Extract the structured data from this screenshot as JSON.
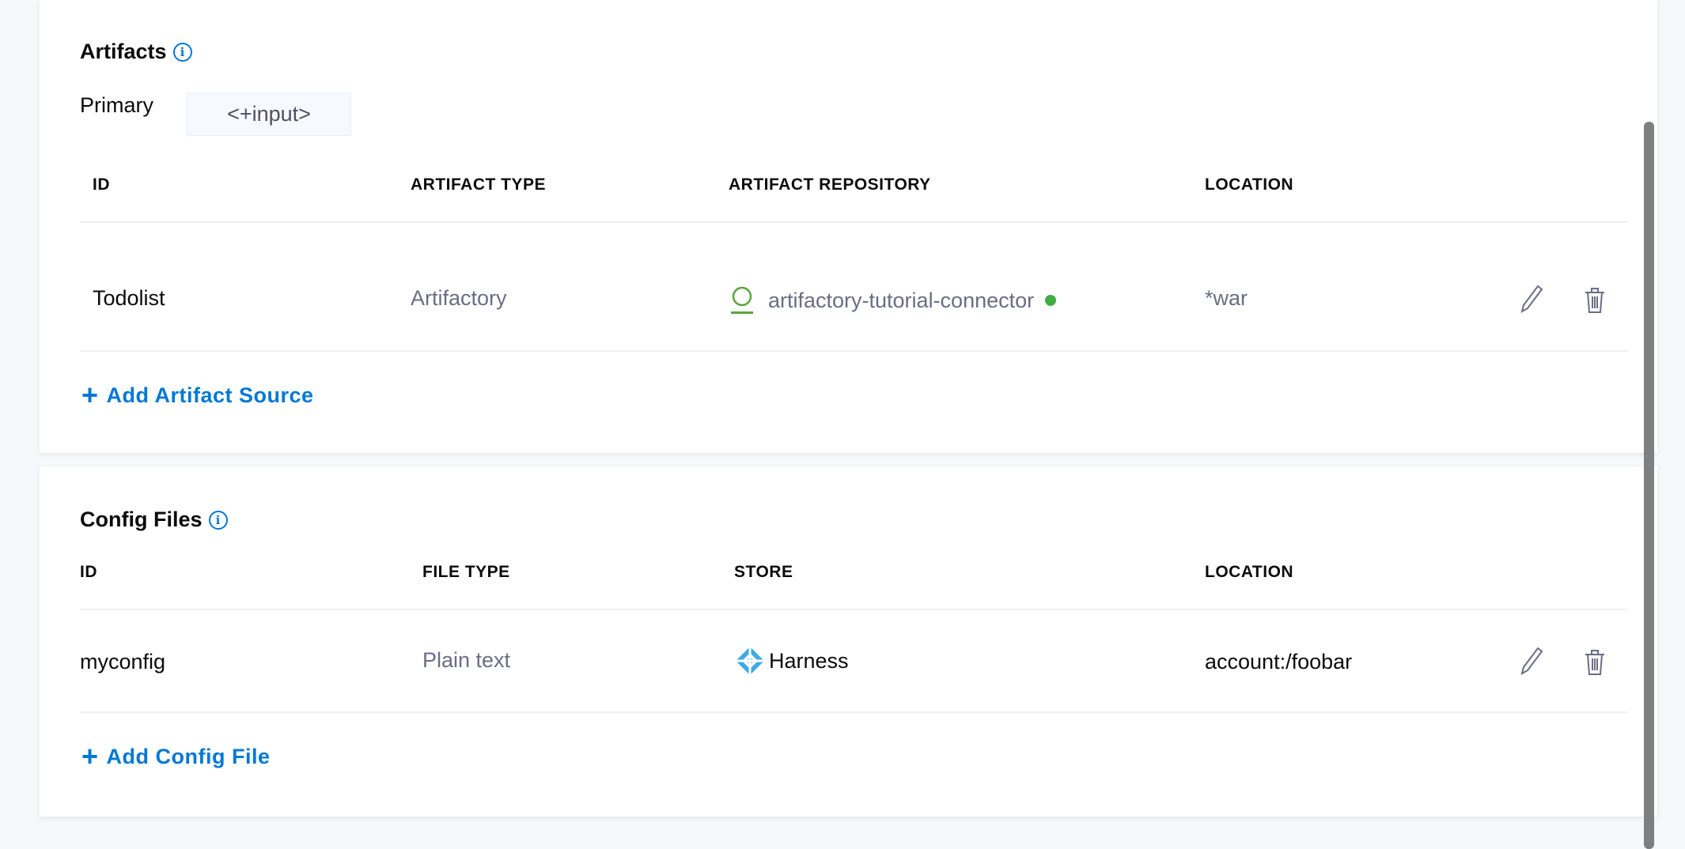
{
  "artifacts": {
    "title": "Artifacts",
    "primary_label": "Primary",
    "primary_value": "<+input>",
    "columns": [
      "ID",
      "ARTIFACT TYPE",
      "ARTIFACT REPOSITORY",
      "LOCATION"
    ],
    "rows": [
      {
        "id": "Todolist",
        "type": "Artifactory",
        "repository": "artifactory-tutorial-connector",
        "repository_icon": "artifactory-icon",
        "status_color": "#42ab45",
        "location": "*war"
      }
    ],
    "add_label": "Add Artifact Source"
  },
  "config_files": {
    "title": "Config Files",
    "columns": [
      "ID",
      "FILE TYPE",
      "STORE",
      "LOCATION"
    ],
    "rows": [
      {
        "id": "myconfig",
        "file_type": "Plain text",
        "store": "Harness",
        "store_icon": "harness-icon",
        "location": "account:/foobar"
      }
    ],
    "add_label": "Add Config File"
  },
  "colors": {
    "accent": "#0278d5",
    "muted_text": "#6b6d85",
    "status_ok": "#42ab45",
    "harness": "#3dabe2"
  }
}
